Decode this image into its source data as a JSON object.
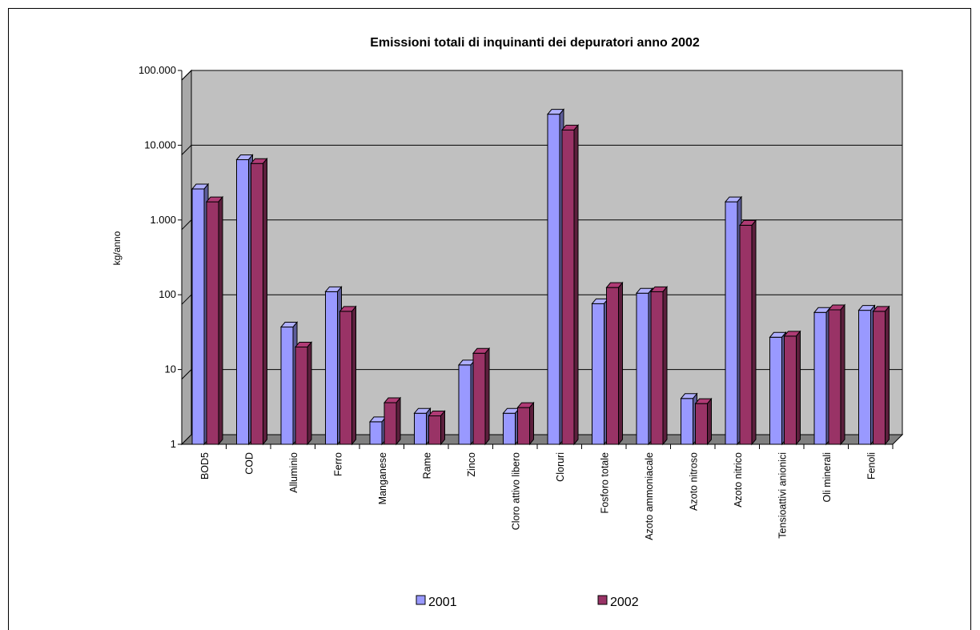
{
  "chart_data": {
    "type": "bar",
    "title": "Emissioni totali di inquinanti dei depuratori anno 2002",
    "ylabel": "kg/anno",
    "xlabel": "",
    "yscale": "log",
    "ylim": [
      1,
      100000
    ],
    "ytick_values": [
      1,
      10,
      100,
      1000,
      10000,
      100000
    ],
    "ytick_labels": [
      "1",
      "10",
      "100",
      "1.000",
      "10.000",
      "100.000"
    ],
    "grid": true,
    "legend_position": "bottom",
    "categories": [
      "BOD5",
      "COD",
      "Alluminio",
      "Ferro",
      "Manganese",
      "Rame",
      "Zinco",
      "Cloro attivo libero",
      "Cloruri",
      "Fosforo totale",
      "Azoto ammoniacale",
      "Azoto nitroso",
      "Azoto nitrico",
      "Tensioattivi anionici",
      "Oli minerali",
      "Fenoli"
    ],
    "series": [
      {
        "name": "2001",
        "color": "#9999FF",
        "values": [
          2600,
          6400,
          37,
          110,
          2.0,
          2.6,
          11.5,
          2.6,
          26000,
          76,
          105,
          4.1,
          1750,
          27,
          58,
          62
        ]
      },
      {
        "name": "2002",
        "color": "#993366",
        "values": [
          1750,
          5700,
          20,
          60,
          3.6,
          2.4,
          16.5,
          3.1,
          16000,
          125,
          110,
          3.5,
          850,
          28,
          63,
          60
        ]
      }
    ]
  }
}
